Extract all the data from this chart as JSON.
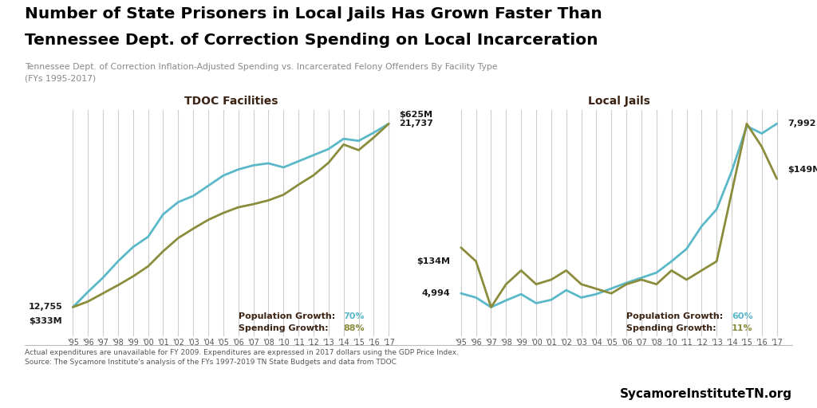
{
  "title_line1": "Number of State Prisoners in Local Jails Has Grown Faster Than",
  "title_line2": "Tennessee Dept. of Correction Spending on Local Incarceration",
  "subtitle": "Tennessee Dept. of Correction Inflation-Adjusted Spending vs. Incarcerated Felony Offenders By Facility Type\n(FYs 1995-2017)",
  "footnote": "Actual expenditures are unavailable for FY 2009. Expenditures are expressed in 2017 dollars using the GDP Price Index.\nSource: The Sycamore Institute's analysis of the FYs 1997-2019 TN State Budgets and data from TDOC",
  "watermark": "SycamoreInstituteTN.org",
  "years": [
    "'95",
    "'96",
    "'97",
    "'98",
    "'99",
    "'00",
    "'01",
    "'02",
    "'03",
    "'04",
    "'05",
    "'06",
    "'07",
    "'08",
    "'10",
    "'11",
    "'12",
    "'13",
    "'14",
    "'15",
    "'16",
    "'17"
  ],
  "tdoc_title": "TDOC Facilities",
  "local_title": "Local Jails",
  "tdoc_population": [
    12755,
    13500,
    14200,
    15000,
    15700,
    16200,
    17300,
    17900,
    18200,
    18700,
    19200,
    19500,
    19700,
    19800,
    19600,
    19900,
    20200,
    20500,
    21000,
    20900,
    21300,
    21737
  ],
  "tdoc_spending": [
    333,
    342,
    355,
    368,
    382,
    398,
    422,
    443,
    458,
    472,
    483,
    492,
    497,
    503,
    512,
    528,
    543,
    563,
    592,
    583,
    603,
    625
  ],
  "local_population": [
    4994,
    4920,
    4750,
    4870,
    4980,
    4820,
    4880,
    5050,
    4920,
    4980,
    5080,
    5180,
    5270,
    5360,
    5560,
    5780,
    6180,
    6480,
    7150,
    7950,
    7820,
    7992
  ],
  "local_spending": [
    134,
    131,
    121,
    126,
    129,
    126,
    127,
    129,
    126,
    125,
    124,
    126,
    127,
    126,
    129,
    127,
    129,
    131,
    146,
    161,
    156,
    149
  ],
  "population_color": "#5BB8C9",
  "spending_color": "#8B8C3C",
  "label_color": "#1A1A1A",
  "title_color": "#000000",
  "subtitle_color": "#888888",
  "footnote_color": "#555555",
  "grid_color": "#CCCCCC",
  "background_color": "#FFFFFF",
  "panel_title_color": "#3B2314",
  "growth_label_color": "#3B2314",
  "watermark_color": "#000000",
  "tdoc_pop_growth": "70%",
  "tdoc_spend_growth": "88%",
  "local_pop_growth": "60%",
  "local_spend_growth": "11%"
}
